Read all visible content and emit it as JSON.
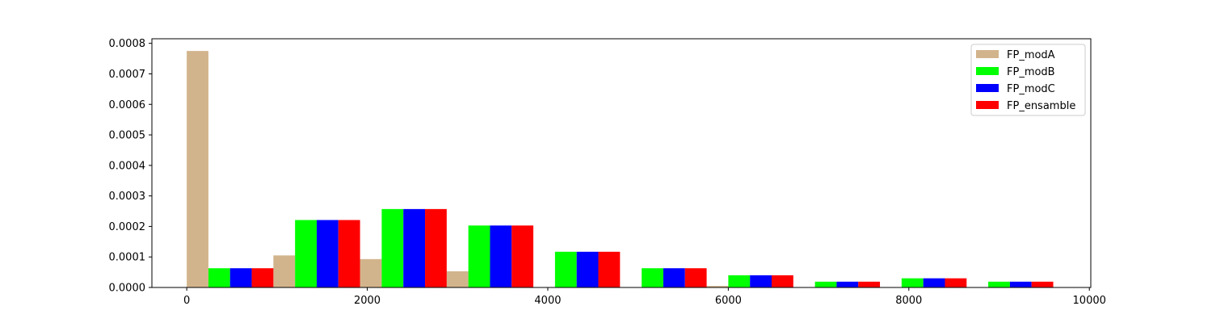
{
  "chart_data": {
    "type": "bar",
    "title": "",
    "xlabel": "",
    "ylabel": "",
    "xlim": [
      -386,
      10016
    ],
    "ylim": [
      0,
      0.000815
    ],
    "grid": false,
    "legend_position": "top-right",
    "bin_edges": [
      0,
      960,
      1920,
      2880,
      3840,
      4800,
      5760,
      6720,
      7680,
      8640,
      9600
    ],
    "x_ticks": [
      "0",
      "2000",
      "4000",
      "6000",
      "8000",
      "10000"
    ],
    "x_tick_values": [
      0,
      2000,
      4000,
      6000,
      8000,
      10000
    ],
    "y_ticks": [
      "0.0000",
      "0.0001",
      "0.0002",
      "0.0003",
      "0.0004",
      "0.0005",
      "0.0006",
      "0.0007",
      "0.0008"
    ],
    "y_tick_values": [
      0,
      0.0001,
      0.0002,
      0.0003,
      0.0004,
      0.0005,
      0.0006,
      0.0007,
      0.0008
    ],
    "series": [
      {
        "name": "FP_modA",
        "color": "#d2b48c",
        "values": [
          0.000775,
          0.000105,
          9.3e-05,
          5.3e-05,
          0,
          0,
          5e-06,
          0,
          0,
          0
        ]
      },
      {
        "name": "FP_modB",
        "color": "#00ff00",
        "values": [
          6.3e-05,
          0.000221,
          0.000257,
          0.000203,
          0.000117,
          6.3e-05,
          4e-05,
          1.9e-05,
          3e-05,
          1.9e-05
        ]
      },
      {
        "name": "FP_modC",
        "color": "#0000ff",
        "values": [
          6.3e-05,
          0.000221,
          0.000257,
          0.000203,
          0.000117,
          6.3e-05,
          4e-05,
          1.9e-05,
          3e-05,
          1.9e-05
        ]
      },
      {
        "name": "FP_ensamble",
        "color": "#ff0000",
        "values": [
          6.3e-05,
          0.000221,
          0.000257,
          0.000203,
          0.000117,
          6.3e-05,
          4e-05,
          1.9e-05,
          3e-05,
          1.9e-05
        ]
      }
    ]
  }
}
